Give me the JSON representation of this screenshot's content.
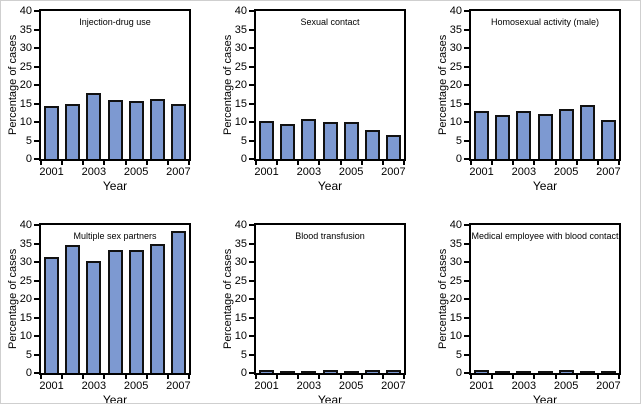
{
  "figure": {
    "ylabel": "Percentage of cases",
    "xlabel": "Year",
    "ytick_labels": [
      "40",
      "35",
      "30",
      "25",
      "20",
      "15",
      "10",
      "5",
      "0"
    ],
    "xtick_labels": [
      "2001",
      "2003",
      "2005",
      "2007"
    ],
    "bar_fill_color": "#7d99d1",
    "bar_border_color": "#111111",
    "axis_color": "#000000",
    "background_color": "#ffffff"
  },
  "chart_data": [
    {
      "type": "bar",
      "title": "Injection-drug use",
      "categories": [
        2001,
        2002,
        2003,
        2004,
        2005,
        2006,
        2007
      ],
      "values": [
        14.4,
        15.0,
        17.9,
        16.0,
        15.6,
        16.2,
        15.0
      ],
      "xlabel": "Year",
      "ylabel": "Percentage of cases",
      "ylim": [
        0,
        40
      ],
      "ytick_step": 5,
      "grid": false,
      "legend": false
    },
    {
      "type": "bar",
      "title": "Sexual contact",
      "categories": [
        2001,
        2002,
        2003,
        2004,
        2005,
        2006,
        2007
      ],
      "values": [
        10.4,
        9.5,
        10.7,
        9.9,
        9.9,
        7.8,
        6.4
      ],
      "xlabel": "Year",
      "ylabel": "Percentage of cases",
      "ylim": [
        0,
        40
      ],
      "ytick_step": 5,
      "grid": false,
      "legend": false
    },
    {
      "type": "bar",
      "title": "Homosexual activity (male)",
      "categories": [
        2001,
        2002,
        2003,
        2004,
        2005,
        2006,
        2007
      ],
      "values": [
        13.1,
        12.0,
        13.1,
        12.2,
        13.6,
        14.7,
        10.6
      ],
      "xlabel": "Year",
      "ylabel": "Percentage of cases",
      "ylim": [
        0,
        40
      ],
      "ytick_step": 5,
      "grid": false,
      "legend": false
    },
    {
      "type": "bar",
      "title": "Multiple sex partners",
      "categories": [
        2001,
        2002,
        2003,
        2004,
        2005,
        2006,
        2007
      ],
      "values": [
        31.3,
        34.6,
        30.3,
        33.2,
        33.3,
        34.8,
        38.5
      ],
      "xlabel": "Year",
      "ylabel": "Percentage of cases",
      "ylim": [
        0,
        40
      ],
      "ytick_step": 5,
      "grid": false,
      "legend": false
    },
    {
      "type": "bar",
      "title": "Blood transfusion",
      "categories": [
        2001,
        2002,
        2003,
        2004,
        2005,
        2006,
        2007
      ],
      "values": [
        0.8,
        0.5,
        0.5,
        0.8,
        0.4,
        0.7,
        0.8
      ],
      "xlabel": "Year",
      "ylabel": "Percentage of cases",
      "ylim": [
        0,
        40
      ],
      "ytick_step": 5,
      "grid": false,
      "legend": false
    },
    {
      "type": "bar",
      "title": "Medical employee with blood contact",
      "categories": [
        2001,
        2002,
        2003,
        2004,
        2005,
        2006,
        2007
      ],
      "values": [
        0.8,
        0.6,
        0.6,
        0.6,
        0.8,
        0.6,
        0.6
      ],
      "xlabel": "Year",
      "ylabel": "Percentage of cases",
      "ylim": [
        0,
        40
      ],
      "ytick_step": 5,
      "grid": false,
      "legend": false
    }
  ]
}
